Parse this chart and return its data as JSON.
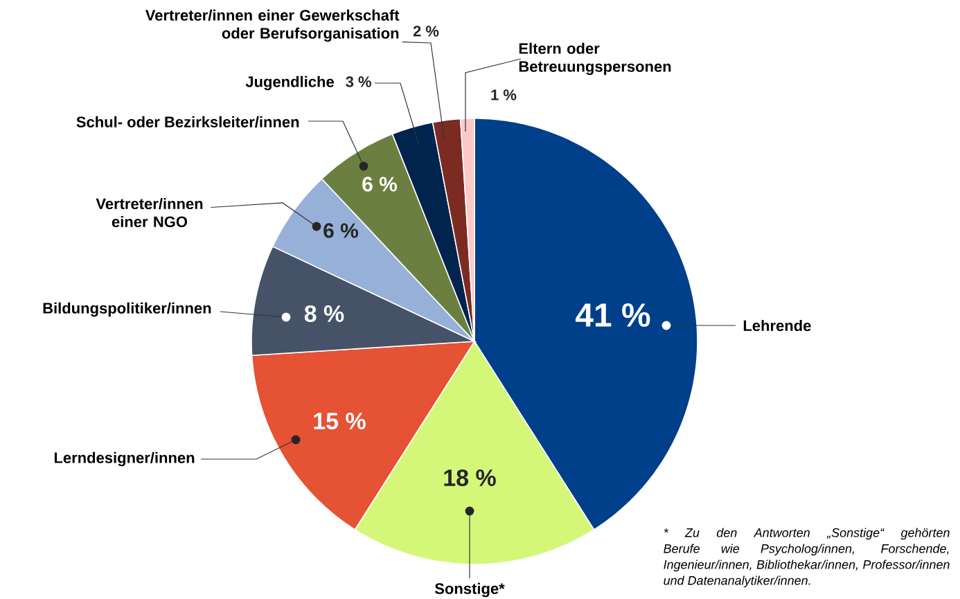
{
  "chart_data": {
    "type": "pie",
    "categories": [
      "Lehrende",
      "Sonstige*",
      "Lerndesigner/innen",
      "Bildungspolitiker/innen",
      "Vertreter/innen einer NGO",
      "Schul- oder Bezirksleiter/innen",
      "Jugendliche",
      "Vertreter/innen einer Gewerkschaft oder Berufsorganisation",
      "Eltern oder Betreuungspersonen"
    ],
    "values": [
      41,
      18,
      15,
      8,
      6,
      6,
      3,
      2,
      1
    ],
    "colors": [
      "#003f8a",
      "#d4f77a",
      "#e55234",
      "#455268",
      "#97b0d8",
      "#6b8040",
      "#00244d",
      "#7b2b22",
      "#fcc8c8"
    ],
    "value_labels": [
      "41 %",
      "18 %",
      "15 %",
      "8 %",
      "6 %",
      "6 %",
      "3 %",
      "2 %",
      "1 %"
    ],
    "annotations": [
      "* Zu den Antworten „Sonstige“ gehörten Berufe wie Psycholog/innen, Forschende, Ingenieur/innen, Bibliothekar/innen, Professor/innen und Datenanalytiker/innen."
    ]
  }
}
